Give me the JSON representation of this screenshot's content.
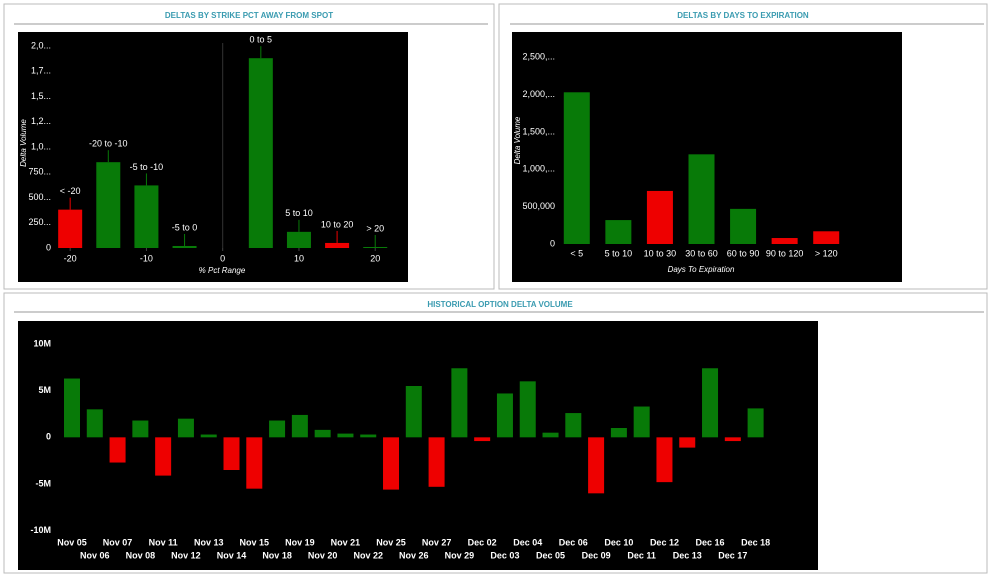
{
  "chart_data": [
    {
      "type": "bar",
      "title": "DELTAS BY STRIKE PCT AWAY FROM SPOT",
      "x_label": "% Pct Range",
      "y_label": "Delta Volume",
      "categories": [
        "< -20",
        "-20 to -10",
        "-5 to -10",
        "-5 to 0",
        "0 to 5",
        "5 to 10",
        "10 to 20",
        "> 20"
      ],
      "x": [
        -20,
        -15,
        -10,
        -5,
        5,
        10,
        15,
        20
      ],
      "values": [
        380000,
        850000,
        620000,
        20000,
        1880000,
        160000,
        50000,
        10000
      ],
      "colors": [
        "#ee0000",
        "#087a08",
        "#087a08",
        "#087a08",
        "#087a08",
        "#087a08",
        "#ee0000",
        "#087a08"
      ],
      "xlim": [
        -23.3,
        22.2
      ],
      "xticks": [
        -20,
        -10,
        0,
        10,
        20
      ],
      "ylim": [
        0,
        2080000
      ],
      "yticks": [
        0,
        {
          "value": 250000,
          "label": "250..."
        },
        {
          "value": 500000,
          "label": "500..."
        },
        {
          "value": 750000,
          "label": "750..."
        },
        {
          "value": 1000000,
          "label": "1,0..."
        },
        {
          "value": 1250000,
          "label": "1,2..."
        },
        {
          "value": 1500000,
          "label": "1,5..."
        },
        {
          "value": 1750000,
          "label": "1,7..."
        },
        {
          "value": 2000000,
          "label": "2,0..."
        }
      ]
    },
    {
      "type": "bar",
      "title": "DELTAS BY DAYS TO EXPIRATION",
      "x_label": "Days To Expiration",
      "y_label": "Delta Volume",
      "categories": [
        "< 5",
        "5 to 10",
        "10 to 30",
        "30 to 60",
        "60 to 90",
        "90 to 120",
        "> 120"
      ],
      "values": [
        2030000,
        320000,
        710000,
        1200000,
        470000,
        80000,
        170000
      ],
      "colors": [
        "#087a08",
        "#087a08",
        "#ee0000",
        "#087a08",
        "#087a08",
        "#ee0000",
        "#ee0000"
      ],
      "ylim": [
        0,
        2770000
      ],
      "yticks": [
        0,
        {
          "value": 500000,
          "label": "500,000"
        },
        {
          "value": 1000000,
          "label": "1,000,..."
        },
        {
          "value": 1500000,
          "label": "1,500,..."
        },
        {
          "value": 2000000,
          "label": "2,000,..."
        },
        {
          "value": 2500000,
          "label": "2,500,..."
        }
      ]
    },
    {
      "type": "bar",
      "title": "HISTORICAL OPTION DELTA VOLUME",
      "categories": [
        "Nov 05",
        "Nov 06",
        "Nov 07",
        "Nov 08",
        "Nov 11",
        "Nov 12",
        "Nov 13",
        "Nov 14",
        "Nov 15",
        "Nov 18",
        "Nov 19",
        "Nov 20",
        "Nov 21",
        "Nov 22",
        "Nov 25",
        "Nov 26",
        "Nov 27",
        "Nov 29",
        "Dec 02",
        "Dec 03",
        "Dec 04",
        "Dec 05",
        "Dec 06",
        "Dec 09",
        "Dec 10",
        "Dec 11",
        "Dec 12",
        "Dec 13",
        "Dec 16",
        "Dec 17",
        "Dec 18"
      ],
      "values": [
        6300000,
        3000000,
        -2700000,
        1800000,
        -4100000,
        2000000,
        300000,
        -3500000,
        -5500000,
        1800000,
        2400000,
        800000,
        400000,
        300000,
        -5600000,
        5500000,
        -5300000,
        7400000,
        -400000,
        4700000,
        6000000,
        500000,
        2600000,
        -6000000,
        1000000,
        3300000,
        -4800000,
        -1100000,
        7400000,
        -400000,
        3100000
      ],
      "colors": [
        "#087a08",
        "#087a08",
        "#ee0000",
        "#087a08",
        "#ee0000",
        "#087a08",
        "#087a08",
        "#ee0000",
        "#ee0000",
        "#087a08",
        "#087a08",
        "#087a08",
        "#087a08",
        "#087a08",
        "#ee0000",
        "#087a08",
        "#ee0000",
        "#087a08",
        "#ee0000",
        "#087a08",
        "#087a08",
        "#087a08",
        "#087a08",
        "#ee0000",
        "#087a08",
        "#087a08",
        "#ee0000",
        "#ee0000",
        "#087a08",
        "#ee0000",
        "#087a08"
      ],
      "ylim": [
        -11000000,
        11500000
      ],
      "yticks": [
        {
          "value": -10000000,
          "label": "-10M"
        },
        {
          "value": -5000000,
          "label": "-5M"
        },
        0,
        {
          "value": 5000000,
          "label": "5M"
        },
        {
          "value": 10000000,
          "label": "10M"
        }
      ]
    }
  ]
}
